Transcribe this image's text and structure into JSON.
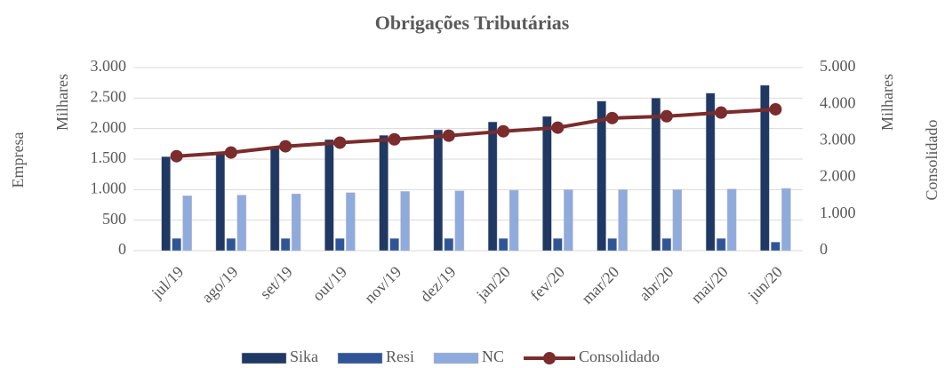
{
  "chart_data": {
    "type": "bar",
    "title": "Obrigações Tributárias",
    "y_label": "Empresa",
    "y_unit": "Milhares",
    "y2_label": "Consolidado",
    "y2_unit": "Milhares",
    "categories": [
      "jul/19",
      "ago/19",
      "set/19",
      "out/19",
      "nov/19",
      "dez/19",
      "jan/20",
      "fev/20",
      "mar/20",
      "abr/20",
      "mai/20",
      "jun/20"
    ],
    "series": [
      {
        "name": "Sika",
        "type": "bar",
        "color": "#1f3864",
        "values": [
          1540,
          1600,
          1690,
          1820,
          1890,
          1980,
          2110,
          2200,
          2450,
          2500,
          2580,
          2710
        ]
      },
      {
        "name": "Resi",
        "type": "bar",
        "color": "#2f5597",
        "values": [
          200,
          200,
          200,
          200,
          200,
          200,
          200,
          200,
          200,
          200,
          200,
          140
        ]
      },
      {
        "name": "NC",
        "type": "bar",
        "color": "#8faadc",
        "values": [
          900,
          910,
          930,
          950,
          970,
          980,
          990,
          1000,
          1000,
          1000,
          1010,
          1020
        ]
      },
      {
        "name": "Consolidado",
        "type": "line",
        "axis": "y2",
        "color": "#7b2c2c",
        "values": [
          2580,
          2680,
          2850,
          2950,
          3040,
          3140,
          3260,
          3360,
          3620,
          3670,
          3770,
          3860
        ]
      }
    ],
    "ylim": [
      0,
      3000
    ],
    "yticks": [
      0,
      500,
      {
        "value": 1000,
        "label": "1.000"
      },
      {
        "value": 1500,
        "label": "1.500"
      },
      {
        "value": 2000,
        "label": "2.000"
      },
      {
        "value": 2500,
        "label": "2.500"
      },
      {
        "value": 3000,
        "label": "3.000"
      }
    ],
    "y2lim": [
      0,
      5000
    ],
    "y2ticks": [
      0,
      {
        "value": 1000,
        "label": "1.000"
      },
      {
        "value": 2000,
        "label": "2.000"
      },
      {
        "value": 3000,
        "label": "3.000"
      },
      {
        "value": 4000,
        "label": "4.000"
      },
      {
        "value": 5000,
        "label": "5.000"
      }
    ],
    "grid": true
  }
}
